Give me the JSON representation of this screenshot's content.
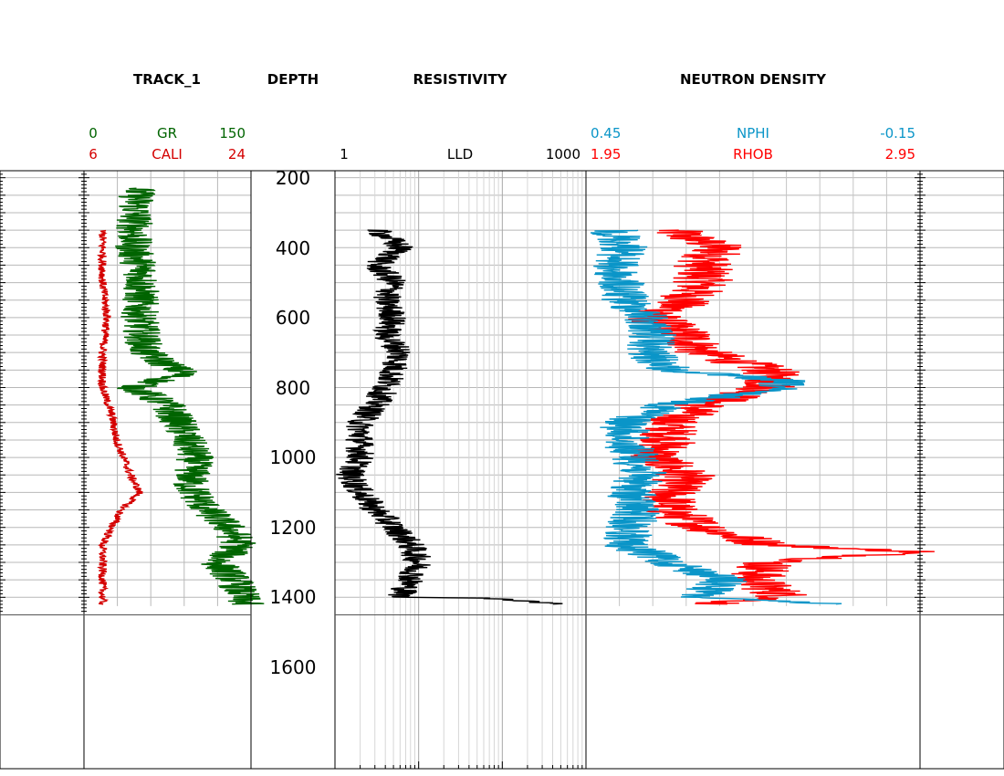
{
  "chart_data": {
    "type": "line",
    "tracks": [
      {
        "title": "TRACK_1",
        "curves": [
          {
            "name": "GR",
            "color": "#006400",
            "min": "0",
            "max": "150"
          },
          {
            "name": "CALI",
            "color": "#d40000",
            "min": "6",
            "max": "24"
          }
        ]
      },
      {
        "title": "DEPTH"
      },
      {
        "title": "RESISTIVITY",
        "scale": "log",
        "curves": [
          {
            "name": "LLD",
            "color": "#000000",
            "min": "1",
            "max": "1000"
          }
        ]
      },
      {
        "title": "NEUTRON DENSITY",
        "curves": [
          {
            "name": "NPHI",
            "color": "#0a95c8",
            "min": "0.45",
            "max": "-0.15"
          },
          {
            "name": "RHOB",
            "color": "#ff0000",
            "min": "1.95",
            "max": "2.95"
          }
        ]
      }
    ],
    "depth_axis": {
      "range": [
        180,
        1890
      ],
      "ticks": [
        "200",
        "400",
        "600",
        "800",
        "1000",
        "1200",
        "1400",
        "1600"
      ]
    },
    "grid": true,
    "series": [
      {
        "name": "GR",
        "x": [
          230,
          400,
          470,
          600,
          700,
          760,
          800,
          850,
          900,
          1000,
          1080,
          1150,
          1200,
          1250,
          1300,
          1350,
          1420
        ],
        "values": [
          48,
          44,
          52,
          50,
          55,
          90,
          45,
          75,
          85,
          100,
          95,
          110,
          130,
          140,
          120,
          135,
          145
        ]
      },
      {
        "name": "CALI",
        "x": [
          350,
          400,
          500,
          600,
          700,
          800,
          880,
          950,
          1050,
          1100,
          1150,
          1200,
          1250,
          1300,
          1400,
          1420
        ],
        "values": [
          8,
          8,
          8,
          8.5,
          8,
          8,
          9,
          9.5,
          11,
          12,
          10,
          9,
          8,
          8,
          8,
          8
        ]
      },
      {
        "name": "LLD",
        "x": [
          350,
          400,
          450,
          500,
          550,
          600,
          650,
          700,
          750,
          800,
          850,
          900,
          950,
          1000,
          1050,
          1100,
          1150,
          1200,
          1250,
          1300,
          1350,
          1400,
          1420
        ],
        "values": [
          3,
          6,
          3,
          5,
          4,
          5,
          4,
          6,
          5,
          4,
          3,
          2,
          2,
          2,
          1.5,
          2,
          3,
          5,
          8,
          10,
          8,
          6,
          400
        ]
      },
      {
        "name": "NPHI",
        "x": [
          350,
          400,
          450,
          500,
          550,
          600,
          650,
          700,
          750,
          780,
          800,
          850,
          900,
          950,
          1000,
          1050,
          1100,
          1150,
          1200,
          1250,
          1300,
          1350,
          1400,
          1420
        ],
        "values": [
          0.4,
          0.38,
          0.4,
          0.39,
          0.38,
          0.34,
          0.33,
          0.34,
          0.3,
          0.1,
          0.1,
          0.3,
          0.38,
          0.38,
          0.36,
          0.35,
          0.37,
          0.36,
          0.37,
          0.38,
          0.3,
          0.2,
          0.25,
          0.01
        ]
      },
      {
        "name": "RHOB",
        "x": [
          350,
          400,
          450,
          500,
          550,
          600,
          650,
          700,
          750,
          780,
          800,
          850,
          900,
          950,
          1000,
          1050,
          1100,
          1150,
          1200,
          1250,
          1270,
          1300,
          1350,
          1400,
          1420
        ],
        "values": [
          2.2,
          2.35,
          2.3,
          2.3,
          2.25,
          2.15,
          2.25,
          2.3,
          2.5,
          2.5,
          2.5,
          2.3,
          2.2,
          2.2,
          2.15,
          2.25,
          2.2,
          2.2,
          2.3,
          2.5,
          2.95,
          2.5,
          2.45,
          2.55,
          2.3
        ]
      }
    ]
  }
}
